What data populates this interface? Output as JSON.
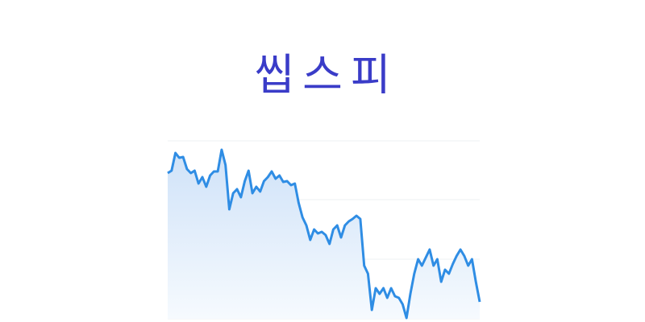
{
  "chart_data": {
    "type": "area",
    "title": "씹스피",
    "values": [
      181,
      184,
      206,
      200,
      201,
      186,
      181,
      184,
      168,
      176,
      164,
      178,
      183,
      183,
      210,
      191,
      136,
      156,
      161,
      151,
      171,
      184,
      156,
      164,
      158,
      171,
      176,
      183,
      174,
      178,
      170,
      171,
      166,
      168,
      144,
      126,
      116,
      98,
      111,
      106,
      108,
      104,
      93,
      111,
      116,
      101,
      116,
      121,
      124,
      128,
      124,
      66,
      56,
      11,
      38,
      31,
      38,
      26,
      38,
      28,
      26,
      18,
      1,
      31,
      56,
      74,
      66,
      76,
      86,
      66,
      74,
      46,
      61,
      56,
      68,
      78,
      86,
      78,
      66,
      74,
      46,
      21
    ],
    "color": "#2f8de4",
    "ylim": [
      0,
      221
    ],
    "gridlines": [
      0,
      74,
      148,
      221
    ]
  }
}
